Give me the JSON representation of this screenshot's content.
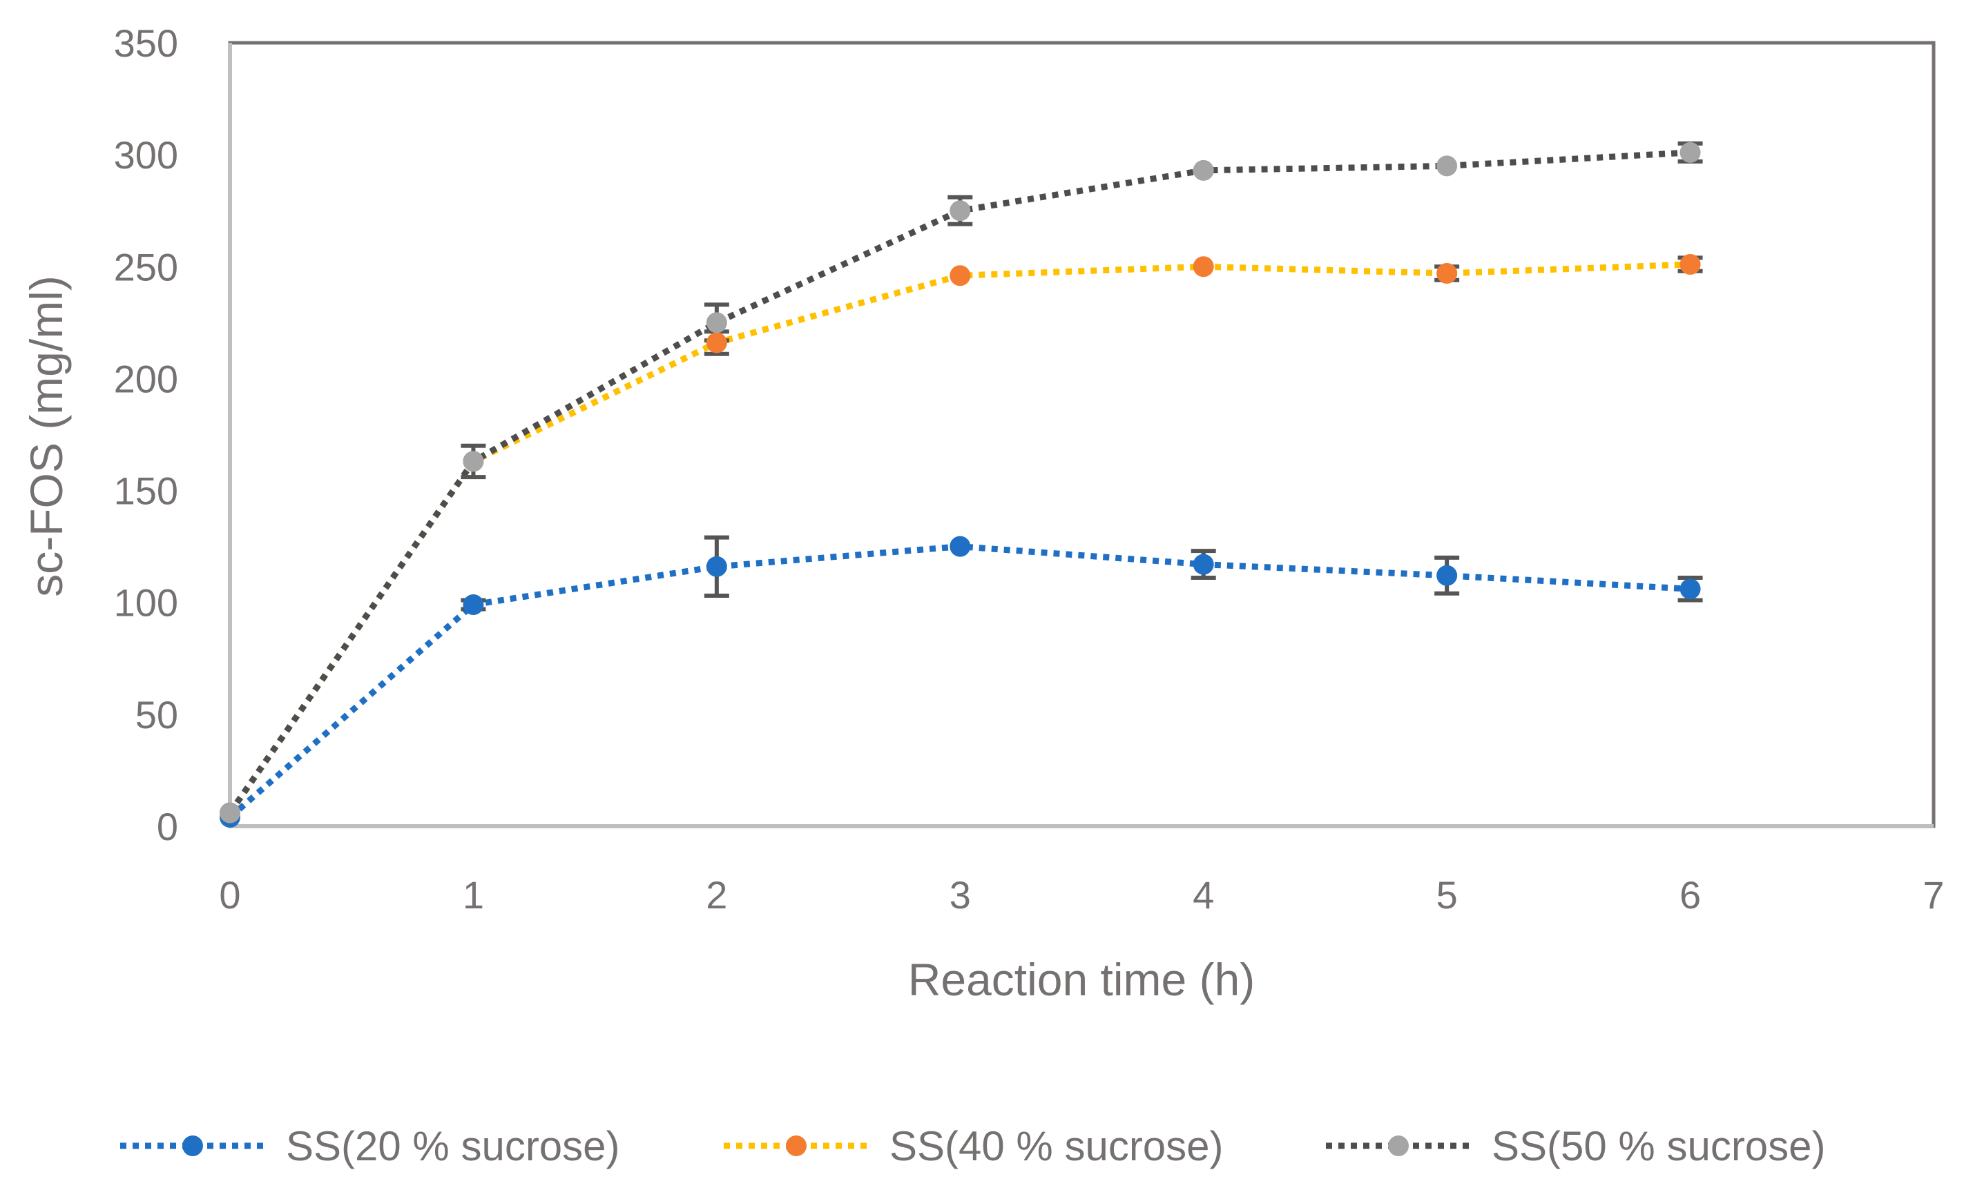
{
  "chart_data": {
    "type": "scatter",
    "title": "",
    "xlabel": "Reaction time (h)",
    "ylabel": "sc-FOS (mg/ml)",
    "xlim": [
      0,
      7
    ],
    "ylim": [
      0,
      350
    ],
    "xticks": [
      0,
      1,
      2,
      3,
      4,
      5,
      6,
      7
    ],
    "yticks": [
      0,
      50,
      100,
      150,
      200,
      250,
      300,
      350
    ],
    "grid": false,
    "legend_position": "bottom",
    "line_style": "dotted",
    "series": [
      {
        "name": "SS(20 % sucrose)",
        "line_color": "#1F6FC5",
        "marker_color": "#1F6FC5",
        "x": [
          0,
          1,
          2,
          3,
          4,
          5,
          6
        ],
        "y": [
          4,
          99,
          116,
          125,
          117,
          112,
          106
        ],
        "error": [
          0,
          2,
          13,
          0,
          6,
          8,
          5
        ]
      },
      {
        "name": "SS(40 % sucrose)",
        "line_color": "#FFC000",
        "marker_color": "#F47C30",
        "x": [
          0,
          1,
          2,
          3,
          4,
          5,
          6
        ],
        "y": [
          6,
          163,
          216,
          246,
          250,
          247,
          251
        ],
        "error": [
          0,
          0,
          5,
          0,
          0,
          3,
          3
        ]
      },
      {
        "name": "SS(50 % sucrose)",
        "line_color": "#4D4D4D",
        "marker_color": "#A5A5A5",
        "x": [
          0,
          1,
          2,
          3,
          4,
          5,
          6
        ],
        "y": [
          6,
          163,
          225,
          275,
          293,
          295,
          301
        ],
        "error": [
          0,
          7,
          8,
          6,
          0,
          0,
          4
        ]
      }
    ]
  }
}
